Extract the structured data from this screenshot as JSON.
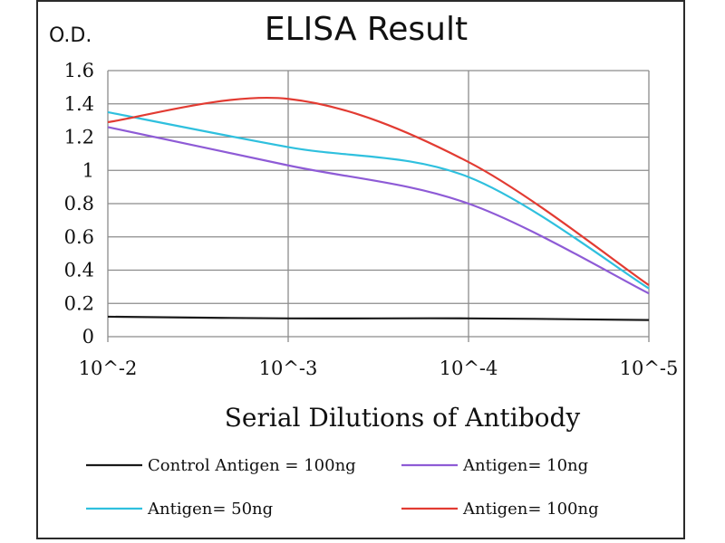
{
  "chart_data": {
    "type": "line",
    "title": "ELISA Result",
    "ylabel": "O.D.",
    "xlabel": "Serial Dilutions  of Antibody",
    "categories": [
      "10^-2",
      "10^-3",
      "10^-4",
      "10^-5"
    ],
    "yticks": [
      "0",
      "0.2",
      "0.4",
      "0.6",
      "0.8",
      "1",
      "1.2",
      "1.4",
      "1.6"
    ],
    "ylim": [
      0,
      1.6
    ],
    "grid": true,
    "legend_position": "bottom",
    "series": [
      {
        "name": "Control Antigen = 100ng",
        "color": "#1a1a1a",
        "values": [
          0.12,
          0.11,
          0.11,
          0.1
        ]
      },
      {
        "name": "Antigen= 10ng",
        "color": "#8e5bd6",
        "values": [
          1.26,
          1.03,
          0.8,
          0.26
        ]
      },
      {
        "name": "Antigen= 50ng",
        "color": "#2fc0de",
        "values": [
          1.35,
          1.14,
          0.96,
          0.29
        ]
      },
      {
        "name": "Antigen= 100ng",
        "color": "#e23b32",
        "values": [
          1.29,
          1.43,
          1.05,
          0.31
        ]
      }
    ]
  }
}
